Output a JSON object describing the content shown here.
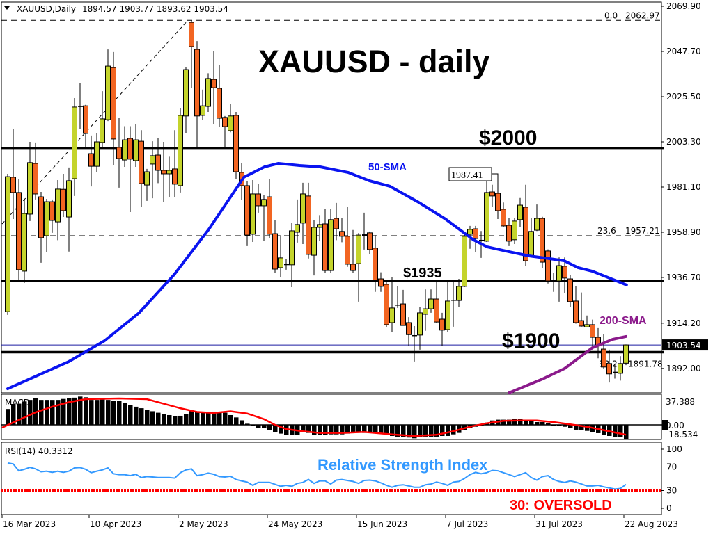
{
  "header": {
    "symbol_label": "XAUUSD,Daily",
    "ohlc_text": "1894.57 1903.77 1893.62 1903.54"
  },
  "annotations": {
    "title": "XAUUSD - daily",
    "level_2000": "$2000",
    "level_1935": "$1935",
    "level_1900": "$1900",
    "sma50_label": "50-SMA",
    "sma200_label": "200-SMA",
    "swing_high_label": "1987.41",
    "rsi_title": "Relative Strength Index",
    "oversold_label": "30: OVERSOLD"
  },
  "colors": {
    "bull": "#c4d42c",
    "bear": "#f26522",
    "sma50": "#0a14f0",
    "sma200": "#8b1a8b",
    "macd_signal": "#ff0000",
    "rsi_line": "#3399ff",
    "oversold_line": "#ff0000"
  },
  "chart_data": [
    {
      "type": "candlestick",
      "title": "XAUUSD - daily",
      "ylim": [
        1880.0,
        2071.95
      ],
      "y_ticks": [
        "2069.90",
        "2047.70",
        "2025.50",
        "2003.30",
        "1981.10",
        "1958.90",
        "1936.70",
        "1914.20",
        "1892.00"
      ],
      "current_price": "1903.54",
      "x_ticks": [
        {
          "index": -1,
          "label": "16 Mar 2023"
        },
        {
          "index": 15,
          "label": "10 Apr 2023"
        },
        {
          "index": 31,
          "label": "2 May 2023"
        },
        {
          "index": 47,
          "label": "24 May 2023"
        },
        {
          "index": 63,
          "label": "15 Jun 2023"
        },
        {
          "index": 79,
          "label": "7 Jul 2023"
        },
        {
          "index": 95,
          "label": "31 Jul 2023"
        },
        {
          "index": 111,
          "label": "22 Aug 2023"
        }
      ],
      "ohlc": [
        [
          1919.9,
          1987.6,
          1918.3,
          1986.2
        ],
        [
          1985.9,
          2009.8,
          1965.4,
          1978.4
        ],
        [
          1978.4,
          1985.2,
          1935.4,
          1940.5
        ],
        [
          1939.8,
          1975.3,
          1934.0,
          1968.1
        ],
        [
          1967.8,
          2003.3,
          1964.4,
          1993.1
        ],
        [
          1992.7,
          2003.0,
          1975.0,
          1977.7
        ],
        [
          1976.3,
          1978.7,
          1943.9,
          1956.2
        ],
        [
          1957.2,
          1975.3,
          1949.0,
          1973.9
        ],
        [
          1973.9,
          1975.0,
          1958.6,
          1964.7
        ],
        [
          1964.0,
          1984.5,
          1955.0,
          1980.1
        ],
        [
          1980.0,
          1987.6,
          1966.4,
          1969.5
        ],
        [
          1966.4,
          1990.7,
          1949.4,
          1984.2
        ],
        [
          1985.2,
          2024.8,
          1976.7,
          2020.4
        ],
        [
          2020.7,
          2032.0,
          2009.5,
          2020.2
        ],
        [
          2021.0,
          2021.5,
          2000.2,
          2007.4
        ],
        [
          1997.5,
          2006.4,
          1981.4,
          1991.3
        ],
        [
          1991.3,
          2007.4,
          1988.6,
          2003.3
        ],
        [
          2003.0,
          2028.2,
          2000.9,
          2014.6
        ],
        [
          2014.2,
          2048.7,
          2013.5,
          2040.5
        ],
        [
          2039.8,
          2047.4,
          1992.0,
          2004.7
        ],
        [
          2000.6,
          2014.9,
          1980.8,
          1995.1
        ],
        [
          1994.4,
          2011.0,
          1991.0,
          2004.3
        ],
        [
          2005.0,
          2011.0,
          1968.8,
          1994.8
        ],
        [
          1994.1,
          2012.2,
          1991.0,
          2004.3
        ],
        [
          2003.6,
          2009.0,
          1971.5,
          1982.8
        ],
        [
          1982.1,
          1990.0,
          1974.3,
          1988.6
        ],
        [
          1992.4,
          2003.6,
          1975.6,
          1996.5
        ],
        [
          1996.8,
          2005.0,
          1983.0,
          1989.3
        ],
        [
          1989.3,
          2003.3,
          1973.6,
          1987.6
        ],
        [
          1987.6,
          1996.0,
          1976.3,
          1989.3
        ],
        [
          1990.0,
          2009.0,
          1976.3,
          1982.5
        ],
        [
          1981.8,
          2019.7,
          1978.4,
          2016.3
        ],
        [
          2016.0,
          2040.0,
          2007.4,
          2038.8
        ],
        [
          2062.0,
          2062.97,
          2029.9,
          2050.1
        ],
        [
          2048.7,
          2052.8,
          2000.6,
          2016.0
        ],
        [
          2016.3,
          2029.0,
          2013.9,
          2021.0
        ],
        [
          2020.7,
          2037.0,
          2018.0,
          2034.4
        ],
        [
          2034.0,
          2048.0,
          2012.0,
          2029.9
        ],
        [
          2029.6,
          2041.2,
          2010.8,
          2014.9
        ],
        [
          2015.3,
          2016.0,
          2000.6,
          2010.8
        ],
        [
          2008.8,
          2022.0,
          2008.0,
          2016.0
        ],
        [
          2016.3,
          2018.0,
          1985.2,
          1988.6
        ],
        [
          1988.3,
          1993.0,
          1974.6,
          1981.8
        ],
        [
          1981.8,
          1984.0,
          1952.1,
          1957.5
        ],
        [
          1957.9,
          1984.5,
          1954.1,
          1977.7
        ],
        [
          1977.7,
          1982.5,
          1968.5,
          1971.9
        ],
        [
          1971.9,
          1977.0,
          1954.5,
          1975.0
        ],
        [
          1976.3,
          1985.2,
          1956.0,
          1957.9
        ],
        [
          1958.2,
          1964.7,
          1938.8,
          1940.8
        ],
        [
          1941.5,
          1957.5,
          1936.7,
          1946.3
        ],
        [
          1943.0,
          1945.9,
          1940.5,
          1942.8
        ],
        [
          1942.9,
          1963.7,
          1931.9,
          1959.6
        ],
        [
          1958.9,
          1975.0,
          1953.8,
          1962.7
        ],
        [
          1963.4,
          1983.2,
          1953.1,
          1977.7
        ],
        [
          1976.7,
          1983.2,
          1946.0,
          1948.0
        ],
        [
          1947.6,
          1965.0,
          1937.7,
          1961.3
        ],
        [
          1961.3,
          1967.3,
          1954.5,
          1962.7
        ],
        [
          1963.0,
          1970.5,
          1939.0,
          1940.1
        ],
        [
          1940.1,
          1970.5,
          1939.0,
          1965.1
        ],
        [
          1965.7,
          1973.3,
          1955.0,
          1960.6
        ],
        [
          1959.3,
          1966.0,
          1954.0,
          1956.9
        ],
        [
          1956.9,
          1971.2,
          1941.9,
          1943.2
        ],
        [
          1943.2,
          1960.0,
          1939.0,
          1940.1
        ],
        [
          1943.5,
          1958.5,
          1924.8,
          1957.5
        ],
        [
          1957.6,
          1968.5,
          1950.4,
          1957.4
        ],
        [
          1958.6,
          1959.3,
          1948.0,
          1950.4
        ],
        [
          1951.1,
          1957.5,
          1929.6,
          1935.4
        ],
        [
          1936.0,
          1939.2,
          1929.6,
          1932.3
        ],
        [
          1933.3,
          1935.5,
          1912.1,
          1913.5
        ],
        [
          1914.5,
          1936.7,
          1910.0,
          1921.7
        ],
        [
          1923.1,
          1932.6,
          1921.7,
          1922.9
        ],
        [
          1923.7,
          1930.6,
          1913.0,
          1913.1
        ],
        [
          1914.5,
          1917.2,
          1902.9,
          1908.6
        ],
        [
          1908.1,
          1912.8,
          1895.4,
          1907.9
        ],
        [
          1908.4,
          1922.0,
          1901.2,
          1919.3
        ],
        [
          1918.6,
          1930.8,
          1910.5,
          1921.3
        ],
        [
          1921.3,
          1930.8,
          1919.3,
          1926.1
        ],
        [
          1926.1,
          1935.0,
          1914.2,
          1914.8
        ],
        [
          1916.2,
          1919.3,
          1903.2,
          1910.8
        ],
        [
          1911.1,
          1934.7,
          1910.0,
          1925.1
        ],
        [
          1925.3,
          1934.7,
          1912.5,
          1925.5
        ],
        [
          1925.4,
          1936.0,
          1922.3,
          1932.3
        ],
        [
          1932.3,
          1957.9,
          1931.9,
          1956.9
        ],
        [
          1957.9,
          1962.0,
          1950.8,
          1960.3
        ],
        [
          1960.6,
          1962.0,
          1949.0,
          1955.8
        ],
        [
          1954.7,
          1959.5,
          1946.3,
          1954.9
        ],
        [
          1954.5,
          1987.41,
          1954.1,
          1978.4
        ],
        [
          1978.7,
          1982.2,
          1971.2,
          1976.7
        ],
        [
          1978.0,
          1987.6,
          1965.4,
          1969.5
        ],
        [
          1970.2,
          1973.5,
          1961.6,
          1962.0
        ],
        [
          1962.3,
          1966.0,
          1952.1,
          1954.5
        ],
        [
          1955.2,
          1966.0,
          1953.1,
          1964.4
        ],
        [
          1965.1,
          1975.7,
          1961.3,
          1972.2
        ],
        [
          1971.2,
          1982.2,
          1942.5,
          1944.9
        ],
        [
          1947.3,
          1966.0,
          1946.5,
          1959.3
        ],
        [
          1959.9,
          1972.5,
          1959.5,
          1965.7
        ],
        [
          1965.7,
          1966.5,
          1941.2,
          1944.2
        ],
        [
          1949.7,
          1950.5,
          1933.7,
          1935.0
        ],
        [
          1934.8,
          1938.8,
          1929.6,
          1934.6
        ],
        [
          1935.0,
          1946.5,
          1924.8,
          1942.5
        ],
        [
          1942.2,
          1946.5,
          1929.0,
          1936.4
        ],
        [
          1936.0,
          1938.0,
          1922.0,
          1924.8
        ],
        [
          1925.1,
          1932.6,
          1914.0,
          1914.5
        ],
        [
          1915.5,
          1929.3,
          1912.5,
          1912.8
        ],
        [
          1912.4,
          1918.0,
          1912.2,
          1913.5
        ],
        [
          1913.5,
          1916.0,
          1903.2,
          1907.3
        ],
        [
          1907.3,
          1911.8,
          1897.0,
          1903.2
        ],
        [
          1901.5,
          1909.0,
          1892.0,
          1892.7
        ],
        [
          1894.4,
          1901.2,
          1885.1,
          1889.3
        ],
        [
          1890.0,
          1894.2,
          1887.0,
          1890.1
        ],
        [
          1889.6,
          1898.0,
          1886.0,
          1894.4
        ],
        [
          1894.57,
          1903.77,
          1893.62,
          1903.54
        ]
      ],
      "sma50": [
        [
          0,
          1882
        ],
        [
          11,
          1895.4
        ],
        [
          17.4,
          1905.6
        ],
        [
          23.6,
          1919.3
        ],
        [
          29.9,
          1938.1
        ],
        [
          36.1,
          1960.3
        ],
        [
          42.4,
          1985.9
        ],
        [
          46.1,
          1991
        ],
        [
          48.6,
          1992.7
        ],
        [
          52.4,
          1991.7
        ],
        [
          56.1,
          1991
        ],
        [
          61.1,
          1988.3
        ],
        [
          64.9,
          1984.2
        ],
        [
          68.6,
          1981.5
        ],
        [
          73.6,
          1973.9
        ],
        [
          78.6,
          1965.4
        ],
        [
          81.1,
          1960.3
        ],
        [
          83.6,
          1955.2
        ],
        [
          86.1,
          1951.7
        ],
        [
          89.9,
          1949.4
        ],
        [
          93.6,
          1947.3
        ],
        [
          97.4,
          1945.9
        ],
        [
          99.9,
          1944.9
        ],
        [
          102.4,
          1941.5
        ],
        [
          104.9,
          1939.8
        ],
        [
          107.4,
          1937.1
        ],
        [
          111.1,
          1933
        ]
      ],
      "sma200": [
        [
          90,
          1880
        ],
        [
          96.1,
          1886.9
        ],
        [
          100,
          1892
        ],
        [
          105,
          1902.2
        ],
        [
          108.6,
          1906.3
        ],
        [
          111,
          1907.7
        ]
      ],
      "horizontal_levels": [
        2000,
        1935,
        1900
      ],
      "bid_line": 1903.54,
      "fibonacci": {
        "levels": [
          {
            "ratio": "0.0",
            "price": 2062.97,
            "label": "2062.97"
          },
          {
            "ratio": "23.6",
            "price": 1957.21,
            "label": "1957.21"
          },
          {
            "ratio": "38.2",
            "price": 1891.78,
            "label": "1891.78"
          }
        ],
        "trendline": [
          [
            -1,
            1963.0
          ],
          [
            33,
            2062.97
          ]
        ]
      }
    },
    {
      "type": "bar",
      "indicator": "MACD",
      "label": "MACD",
      "y_ticks": [
        "37.388",
        "0.00",
        "-18.534"
      ],
      "histogram": [
        21,
        27.6,
        28,
        31,
        33,
        35,
        33,
        33,
        33,
        33,
        34.3,
        35,
        36,
        37.4,
        36.5,
        33,
        33,
        33.5,
        33,
        31.3,
        31.3,
        29,
        26.6,
        24,
        22,
        20,
        18,
        16,
        14.4,
        12.9,
        11.3,
        12,
        14.4,
        18,
        17.5,
        16.8,
        17.5,
        17.5,
        16.8,
        16,
        12.9,
        9.8,
        6,
        1.5,
        0,
        -4,
        -4.6,
        -7,
        -10,
        -11.6,
        -13.8,
        -13.8,
        -13.2,
        -10,
        -10.7,
        -13.2,
        -13.2,
        -13.8,
        -12.6,
        -12.6,
        -12.6,
        -11.6,
        -10.7,
        -10,
        -10.7,
        -10.7,
        -10.7,
        -11.6,
        -13.8,
        -14.7,
        -15.6,
        -16.2,
        -16.8,
        -17.8,
        -16.2,
        -15.6,
        -15.6,
        -15.6,
        -14.7,
        -14.7,
        -12.6,
        -10.7,
        -7,
        -4,
        -2.5,
        0,
        3,
        5.8,
        6.8,
        6.8,
        6.8,
        7.7,
        7.7,
        4.6,
        4.6,
        3.7,
        3.7,
        2.1,
        0,
        -0.9,
        -2.5,
        -4,
        -6.4,
        -7,
        -8,
        -10,
        -11,
        -13.2,
        -14.7,
        -16.2,
        -16.2,
        -18.534
      ],
      "signal": [
        [
          -1,
          -3.7
        ],
        [
          2,
          6.4
        ],
        [
          5,
          16.5
        ],
        [
          8,
          24
        ],
        [
          11,
          30
        ],
        [
          14,
          34
        ],
        [
          20,
          35
        ],
        [
          25,
          34
        ],
        [
          28,
          28
        ],
        [
          31,
          22
        ],
        [
          34,
          17
        ],
        [
          37,
          15.7
        ],
        [
          40,
          17.9
        ],
        [
          43,
          15
        ],
        [
          46,
          7.5
        ],
        [
          48,
          0
        ],
        [
          50,
          -5.5
        ],
        [
          53,
          -8.5
        ],
        [
          56,
          -10.7
        ],
        [
          60,
          -10.7
        ],
        [
          64,
          -9.5
        ],
        [
          69,
          -12.6
        ],
        [
          73,
          -14.7
        ],
        [
          77,
          -13.2
        ],
        [
          80,
          -8.5
        ],
        [
          83,
          -2.5
        ],
        [
          86,
          2.1
        ],
        [
          89,
          5.2
        ],
        [
          92,
          5.8
        ],
        [
          95,
          5.8
        ],
        [
          98,
          3.7
        ],
        [
          101,
          0.6
        ],
        [
          104,
          -2.5
        ],
        [
          107,
          -7
        ],
        [
          111,
          -13.2
        ]
      ]
    },
    {
      "type": "line",
      "indicator": "RSI",
      "label": "RSI(14) 40.3312",
      "ylim": [
        0,
        100
      ],
      "y_ticks": [
        "100",
        "70",
        "30",
        "0"
      ],
      "levels": [
        70,
        30
      ],
      "values": [
        76.6,
        75,
        63.4,
        66,
        69.3,
        66.7,
        61.8,
        62.8,
        60.8,
        62.8,
        60.8,
        62.8,
        68.4,
        69,
        66,
        60.2,
        62.8,
        65,
        68.4,
        58.5,
        56.9,
        56.9,
        55.2,
        57.5,
        52,
        53.6,
        53,
        52,
        52,
        52,
        51,
        60.2,
        65,
        66.7,
        55.2,
        56.9,
        59.5,
        57.5,
        53.6,
        53,
        54.2,
        48.7,
        46.4,
        44.4,
        38.8,
        43.8,
        43.8,
        43.8,
        40.5,
        37.2,
        38.8,
        37.2,
        42.1,
        43.8,
        48.7,
        42.1,
        46.4,
        46.4,
        41.1,
        47.7,
        48.7,
        47,
        45.4,
        42.1,
        47,
        47.7,
        46.4,
        43.1,
        38.8,
        35.6,
        38.8,
        39.8,
        37.8,
        35.6,
        35.6,
        39.8,
        41.1,
        44.4,
        42.1,
        38.8,
        44.4,
        45.4,
        50.3,
        56.9,
        60.8,
        58.5,
        60.2,
        64.1,
        63.4,
        60.2,
        56.9,
        53.6,
        56.9,
        60.2,
        52,
        47.7,
        53.6,
        55.2,
        48.7,
        45.4,
        43.8,
        46.4,
        44.4,
        41.1,
        37.8,
        37.8,
        38.8,
        36.2,
        34.5,
        32.5,
        33.5,
        40.3312
      ]
    }
  ]
}
